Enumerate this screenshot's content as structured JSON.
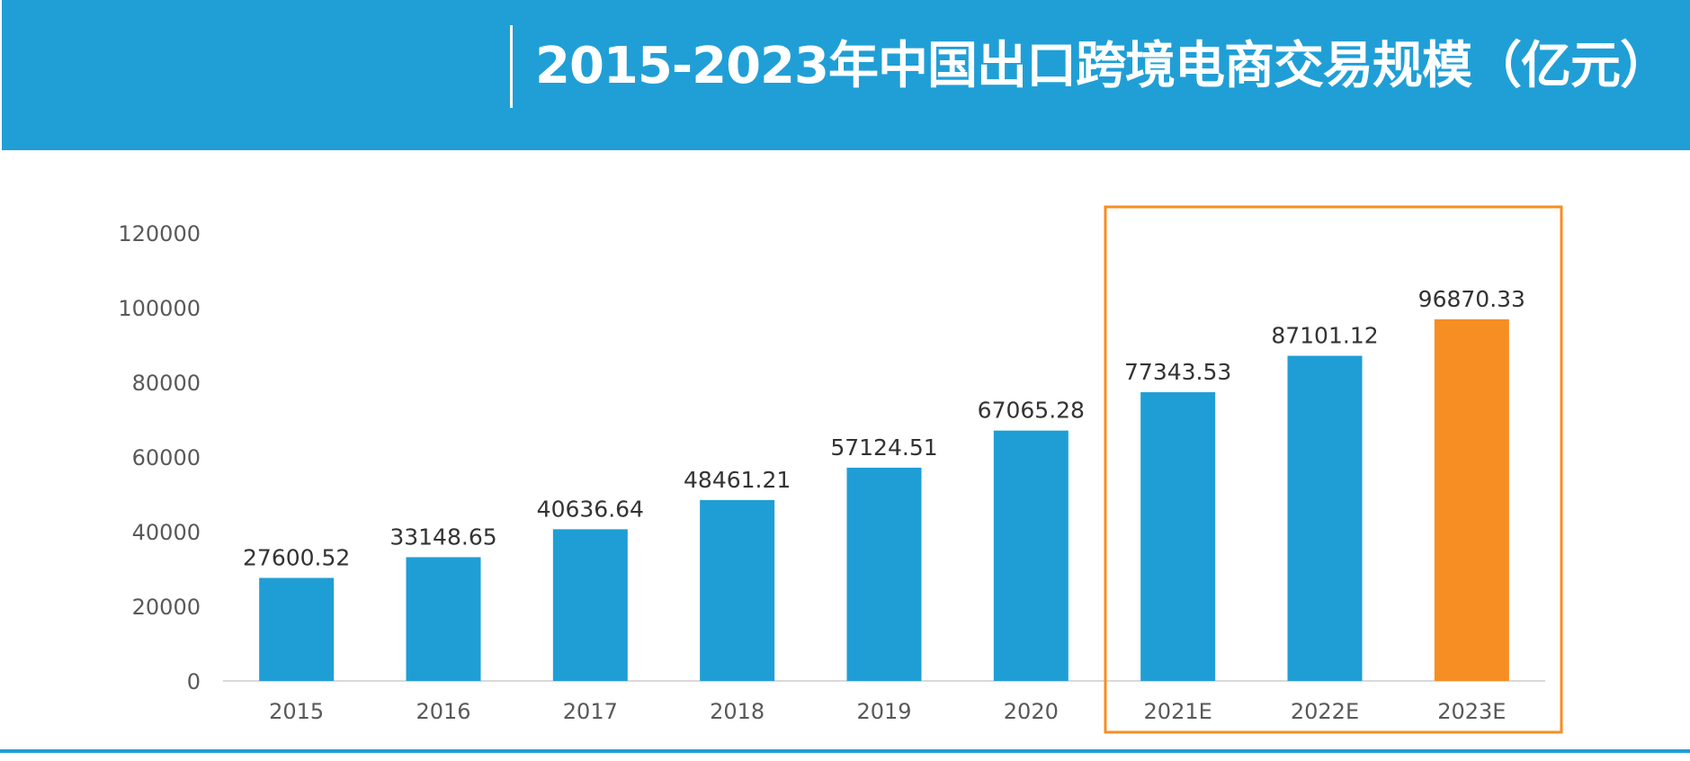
{
  "header": {
    "title": "2015-2023年中国出口跨境电商交易规模（亿元）",
    "background_color": "#209fd6"
  },
  "chart_data": {
    "type": "bar",
    "title": "2015-2023年中国出口跨境电商交易规模（亿元）",
    "categories": [
      "2015",
      "2016",
      "2017",
      "2018",
      "2019",
      "2020",
      "2021E",
      "2022E",
      "2023E"
    ],
    "values": [
      27600.52,
      33148.65,
      40636.64,
      48461.21,
      57124.51,
      67065.28,
      77343.53,
      87101.12,
      96870.33
    ],
    "value_labels": [
      "27600.52",
      "33148.65",
      "40636.64",
      "48461.21",
      "57124.51",
      "67065.28",
      "77343.53",
      "87101.12",
      "96870.33"
    ],
    "y_ticks": [
      "0",
      "20000",
      "40000",
      "60000",
      "80000",
      "100000",
      "120000"
    ],
    "ylim": [
      0,
      120000
    ],
    "xlabel": "",
    "ylabel": "",
    "grid": false,
    "bar_color": "#1f9ed5",
    "highlight_color": "#f68e23",
    "highlight_index": 8,
    "highlight_box": {
      "categories": [
        "2021E",
        "2022E",
        "2023E"
      ],
      "color": "#f68e23"
    }
  }
}
